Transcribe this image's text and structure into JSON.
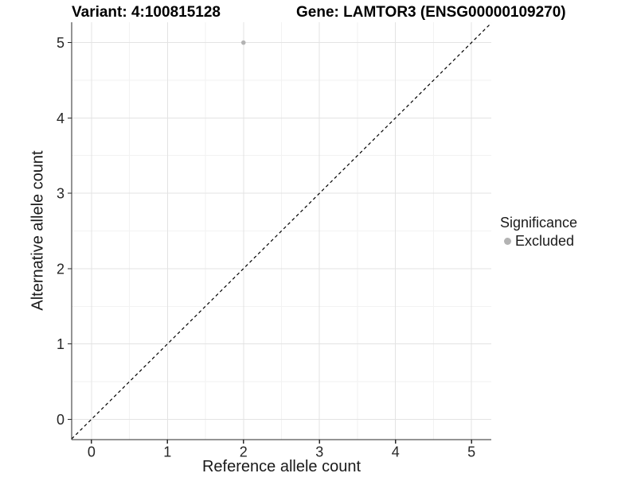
{
  "figure": {
    "title_variant": "Variant: 4:100815128",
    "title_gene": "Gene: LAMTOR3 (ENSG00000109270)"
  },
  "chart_data": {
    "type": "scatter",
    "title": "Variant: 4:100815128 | Gene: LAMTOR3 (ENSG00000109270)",
    "xlabel": "Reference allele count",
    "ylabel": "Alternative allele count",
    "xlim": [
      -0.26,
      5.26
    ],
    "ylim": [
      -0.27,
      5.27
    ],
    "xticks": [
      0,
      1,
      2,
      3,
      4,
      5
    ],
    "yticks": [
      0,
      1,
      2,
      3,
      4,
      5
    ],
    "x_minor": [
      0.5,
      1.5,
      2.5,
      3.5,
      4.5
    ],
    "y_minor": [
      0.5,
      1.5,
      2.5,
      3.5,
      4.5
    ],
    "grid": "major and minor, on",
    "series": [
      {
        "name": "Excluded",
        "marker": "circle",
        "color": "#b3b3b3",
        "points": [
          {
            "x": 2,
            "y": 5
          }
        ]
      }
    ],
    "reference_line": {
      "kind": "identity y=x",
      "style": "dashed",
      "color": "#000000"
    },
    "legend": {
      "title": "Significance",
      "position": "right",
      "entries": [
        {
          "label": "Excluded",
          "color": "#b3b3b3"
        }
      ]
    },
    "colors": {
      "background": "#ffffff",
      "grid_major": "#e3e3e3",
      "grid_minor": "#f2f2f2",
      "axis_line": "#2a2a2a",
      "tick_text": "#262626",
      "point": "#b3b3b3"
    }
  }
}
